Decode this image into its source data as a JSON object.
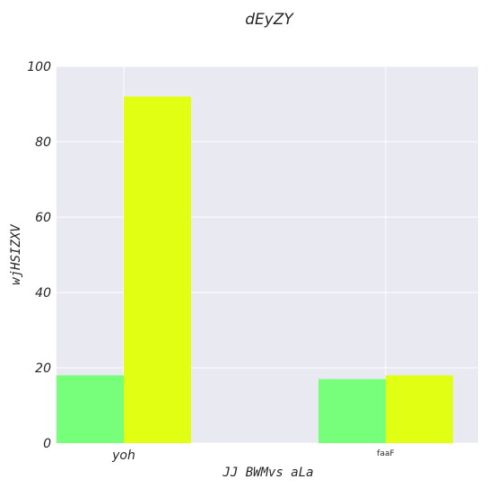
{
  "chart_data": {
    "type": "bar",
    "title": "dEyZY",
    "xlabel": "JJ BWMvs aLa",
    "ylabel": "wjHSIZXV",
    "categories": [
      "yoh",
      "faaF"
    ],
    "series": [
      {
        "values": [
          18,
          17
        ],
        "color": "#77ff7b"
      },
      {
        "values": [
          92,
          18
        ],
        "color": "#e1ff13"
      }
    ],
    "ylim": [
      0,
      100
    ],
    "yticks": [
      0,
      20,
      40,
      60,
      80,
      100
    ],
    "grid": true,
    "background": "#e9e9f1"
  }
}
